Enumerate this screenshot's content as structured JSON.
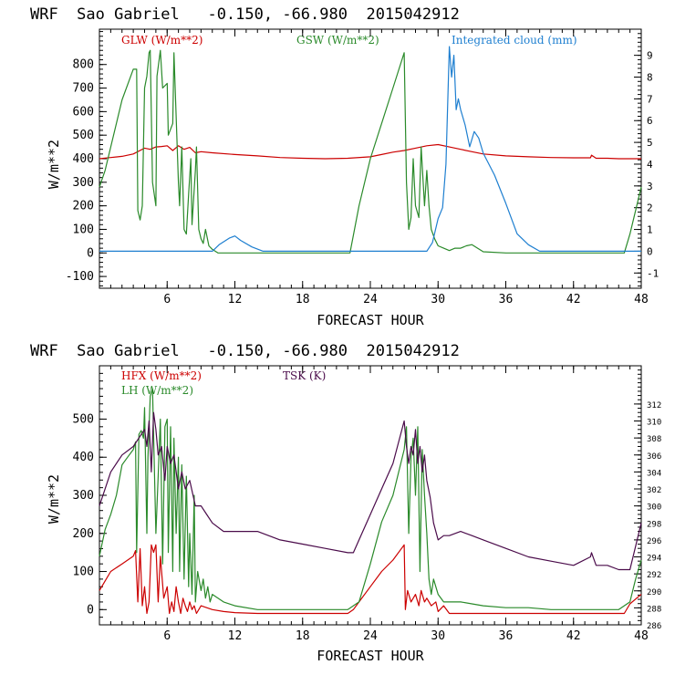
{
  "chart_data": [
    {
      "type": "line",
      "title": "WRF  Sao Gabriel   -0.150, -66.980  2015042912",
      "xlabel": "FORECAST HOUR",
      "ylabel": "W/m**2",
      "xlim": [
        0,
        48
      ],
      "ylim": [
        -150,
        950
      ],
      "y2lim": [
        -1.7,
        10.2
      ],
      "xticks": [
        6,
        12,
        18,
        24,
        30,
        36,
        42,
        48
      ],
      "yticks": [
        -100,
        0,
        100,
        200,
        300,
        400,
        500,
        600,
        700,
        800
      ],
      "y2ticks": [
        -1,
        0,
        1,
        2,
        3,
        4,
        5,
        6,
        7,
        8,
        9
      ],
      "x_tick_labels": [
        "6",
        "12",
        "18",
        "24",
        "30",
        "36",
        "42",
        "48"
      ],
      "y_tick_labels": [
        "-100",
        "0",
        "100",
        "200",
        "300",
        "400",
        "500",
        "600",
        "700",
        "800"
      ],
      "y2_tick_labels": [
        "-1",
        "0",
        "1",
        "2",
        "3",
        "4",
        "5",
        "6",
        "7",
        "8",
        "9"
      ],
      "series": [
        {
          "name": "GLW (W/m**2)",
          "color": "#cc0000",
          "axis": "left",
          "x": [
            0,
            1,
            2,
            3,
            4,
            4.5,
            5,
            5.5,
            6,
            6.5,
            7,
            7.5,
            8,
            8.5,
            9,
            10,
            12,
            14,
            16,
            18,
            20,
            22,
            24,
            25,
            26,
            27,
            28,
            29,
            30,
            31,
            32,
            33,
            34,
            36,
            38,
            40,
            42,
            43.5,
            43.6,
            44,
            45,
            46,
            47,
            48
          ],
          "y": [
            400,
            405,
            410,
            420,
            445,
            440,
            450,
            452,
            455,
            435,
            455,
            440,
            448,
            425,
            430,
            425,
            418,
            412,
            405,
            402,
            400,
            402,
            408,
            418,
            428,
            435,
            445,
            455,
            460,
            450,
            440,
            430,
            420,
            412,
            408,
            405,
            404,
            404,
            415,
            402,
            402,
            400,
            400,
            400
          ]
        },
        {
          "name": "GSW (W/m**2)",
          "color": "#2a8a2a",
          "axis": "left",
          "x": [
            0,
            0.5,
            1,
            2,
            3,
            3.3,
            3.4,
            3.6,
            3.8,
            4,
            4.2,
            4.4,
            4.5,
            4.7,
            5,
            5.1,
            5.4,
            5.6,
            6,
            6.1,
            6.5,
            6.6,
            7,
            7.1,
            7.3,
            7.5,
            7.7,
            7.9,
            8.1,
            8.2,
            8.5,
            8.6,
            8.8,
            9,
            9.2,
            9.4,
            9.7,
            10,
            10.5,
            22.2,
            23,
            24,
            25,
            26,
            27,
            27.2,
            27.4,
            27.6,
            27.8,
            28,
            28.3,
            28.5,
            28.8,
            29,
            29.2,
            29.4,
            29.7,
            30,
            30.5,
            31,
            31.5,
            32,
            32.5,
            33,
            33.5,
            34,
            36,
            46.5,
            47,
            48
          ],
          "y": [
            280,
            350,
            450,
            650,
            780,
            780,
            180,
            140,
            200,
            700,
            750,
            850,
            860,
            300,
            200,
            750,
            860,
            700,
            720,
            500,
            550,
            850,
            300,
            200,
            450,
            100,
            80,
            250,
            400,
            120,
            350,
            450,
            100,
            60,
            40,
            100,
            30,
            15,
            0,
            0,
            200,
            400,
            550,
            700,
            850,
            300,
            100,
            150,
            400,
            200,
            150,
            450,
            200,
            350,
            200,
            100,
            60,
            30,
            20,
            10,
            20,
            20,
            30,
            35,
            20,
            5,
            0,
            0,
            80,
            280
          ]
        },
        {
          "name": "Integrated cloud (mm)",
          "color": "#1e7fd0",
          "axis": "right",
          "x": [
            0,
            10,
            10.6,
            11.5,
            12,
            12.5,
            13.5,
            14.5,
            29,
            29.5,
            30,
            30.4,
            30.7,
            31,
            31.2,
            31.4,
            31.6,
            31.8,
            32,
            32.4,
            32.8,
            33.2,
            33.6,
            34,
            35,
            36,
            37,
            38,
            39,
            48
          ],
          "y": [
            0,
            0,
            0.3,
            0.6,
            0.7,
            0.5,
            0.2,
            0,
            0,
            0.4,
            1.5,
            2,
            4,
            9.4,
            8,
            9,
            6.5,
            7,
            6.5,
            5.8,
            4.8,
            5.5,
            5.2,
            4.5,
            3.5,
            2.2,
            0.8,
            0.3,
            0,
            0
          ]
        }
      ]
    },
    {
      "type": "line",
      "title": "WRF  Sao Gabriel   -0.150, -66.980  2015042912",
      "xlabel": "FORECAST HOUR",
      "ylabel": "W/m**2",
      "xlim": [
        0,
        48
      ],
      "ylim": [
        -40,
        640
      ],
      "y2lim": [
        286,
        316.5
      ],
      "xticks": [
        6,
        12,
        18,
        24,
        30,
        36,
        42,
        48
      ],
      "yticks": [
        0,
        100,
        200,
        300,
        400,
        500
      ],
      "y2ticks": [
        286,
        288,
        290,
        292,
        294,
        296,
        298,
        300,
        302,
        304,
        306,
        308,
        310,
        312
      ],
      "x_tick_labels": [
        "6",
        "12",
        "18",
        "24",
        "30",
        "36",
        "42",
        "48"
      ],
      "y_tick_labels": [
        "0",
        "100",
        "200",
        "300",
        "400",
        "500"
      ],
      "y2_tick_labels": [
        "286",
        "288",
        "290",
        "292",
        "294",
        "296",
        "298",
        "300",
        "302",
        "304",
        "306",
        "308",
        "310",
        "312"
      ],
      "series": [
        {
          "name": "HFX (W/m**2)",
          "color": "#cc0000",
          "axis": "left",
          "x": [
            0,
            1,
            2,
            3,
            3.2,
            3.4,
            3.6,
            3.8,
            4,
            4.2,
            4.4,
            4.6,
            4.8,
            5,
            5.2,
            5.4,
            5.7,
            6,
            6.2,
            6.4,
            6.6,
            6.8,
            7,
            7.2,
            7.4,
            7.6,
            7.8,
            8,
            8.2,
            8.4,
            8.6,
            8.8,
            9,
            9.5,
            10,
            11,
            12,
            14,
            16,
            18,
            20,
            22,
            22.5,
            23,
            24,
            25,
            26,
            27,
            27.1,
            27.3,
            27.6,
            28,
            28.3,
            28.5,
            28.8,
            29,
            29.4,
            29.8,
            30,
            30.5,
            31,
            32,
            33,
            34,
            36,
            38,
            40,
            42,
            44,
            46,
            46.5,
            47,
            48
          ],
          "y": [
            50,
            100,
            120,
            140,
            155,
            20,
            160,
            10,
            60,
            -10,
            20,
            170,
            150,
            170,
            20,
            140,
            30,
            60,
            -10,
            20,
            -5,
            60,
            20,
            -10,
            30,
            10,
            -5,
            20,
            0,
            10,
            -10,
            0,
            10,
            5,
            0,
            -5,
            -8,
            -10,
            -10,
            -10,
            -10,
            -10,
            0,
            20,
            60,
            100,
            130,
            170,
            0,
            50,
            20,
            40,
            10,
            50,
            20,
            30,
            10,
            20,
            -5,
            10,
            -10,
            -10,
            -10,
            -10,
            -10,
            -10,
            -10,
            -10,
            -10,
            -10,
            -10,
            15,
            40
          ]
        },
        {
          "name": "LH  (W/m**2)",
          "color": "#2a8a2a",
          "axis": "left",
          "x": [
            0,
            0.5,
            1,
            1.5,
            2,
            2.5,
            3,
            3.2,
            3.3,
            3.5,
            3.7,
            3.9,
            4,
            4.2,
            4.3,
            4.5,
            4.7,
            5,
            5.2,
            5.4,
            5.6,
            5.8,
            6,
            6.1,
            6.3,
            6.5,
            6.6,
            6.8,
            7,
            7.1,
            7.3,
            7.5,
            7.7,
            7.9,
            8,
            8.2,
            8.4,
            8.5,
            8.7,
            9,
            9.2,
            9.4,
            9.6,
            9.8,
            10,
            11,
            12,
            14,
            16,
            18,
            20,
            22,
            23,
            24,
            25,
            26,
            27,
            27.2,
            27.4,
            27.6,
            27.8,
            28,
            28.2,
            28.4,
            28.6,
            28.8,
            29,
            29.2,
            29.4,
            29.6,
            30,
            30.5,
            31,
            32,
            33,
            34,
            36,
            38,
            40,
            42,
            44,
            46,
            47,
            47.5,
            48
          ],
          "y": [
            140,
            210,
            250,
            300,
            380,
            400,
            420,
            440,
            150,
            460,
            470,
            450,
            530,
            200,
            400,
            560,
            580,
            200,
            350,
            500,
            120,
            480,
            500,
            150,
            480,
            100,
            450,
            200,
            400,
            100,
            380,
            80,
            350,
            60,
            200,
            40,
            300,
            20,
            100,
            50,
            80,
            30,
            60,
            20,
            40,
            20,
            10,
            0,
            0,
            0,
            0,
            0,
            20,
            120,
            230,
            300,
            420,
            480,
            200,
            400,
            450,
            300,
            480,
            100,
            420,
            300,
            200,
            80,
            40,
            80,
            40,
            20,
            20,
            20,
            15,
            10,
            5,
            5,
            0,
            0,
            0,
            0,
            20,
            80,
            130
          ]
        },
        {
          "name": "TSK (K)",
          "color": "#4a0b4a",
          "axis": "right",
          "x": [
            0,
            1,
            2,
            3,
            4,
            4.2,
            4.4,
            4.6,
            4.8,
            5,
            5.2,
            5.5,
            5.8,
            6,
            6.3,
            6.6,
            7,
            7.3,
            7.6,
            8,
            8.5,
            9,
            9.5,
            10,
            11,
            12,
            14,
            16,
            18,
            20,
            22,
            22.5,
            23,
            24,
            25,
            26,
            27,
            27.2,
            27.4,
            27.6,
            27.8,
            28,
            28.2,
            28.4,
            28.6,
            28.8,
            29,
            29.3,
            29.6,
            30,
            30.5,
            31,
            32,
            33,
            34,
            36,
            38,
            40,
            42,
            43.5,
            43.6,
            44,
            45,
            46,
            47,
            48
          ],
          "y": [
            300,
            304,
            306,
            307,
            309,
            307,
            310,
            304,
            311,
            309,
            306,
            307,
            303,
            307,
            305,
            306,
            302,
            304,
            302,
            303,
            300,
            300,
            299,
            298,
            297,
            297,
            297,
            296,
            295.5,
            295,
            294.5,
            294.5,
            296,
            299,
            302,
            305,
            310,
            307,
            305,
            307,
            306,
            309,
            305,
            307,
            304,
            306,
            303,
            301,
            298,
            296,
            296.5,
            296.5,
            297,
            296.5,
            296,
            295,
            294,
            293.5,
            293,
            294,
            294.5,
            293,
            293,
            292.5,
            292.5,
            298
          ]
        }
      ]
    }
  ]
}
